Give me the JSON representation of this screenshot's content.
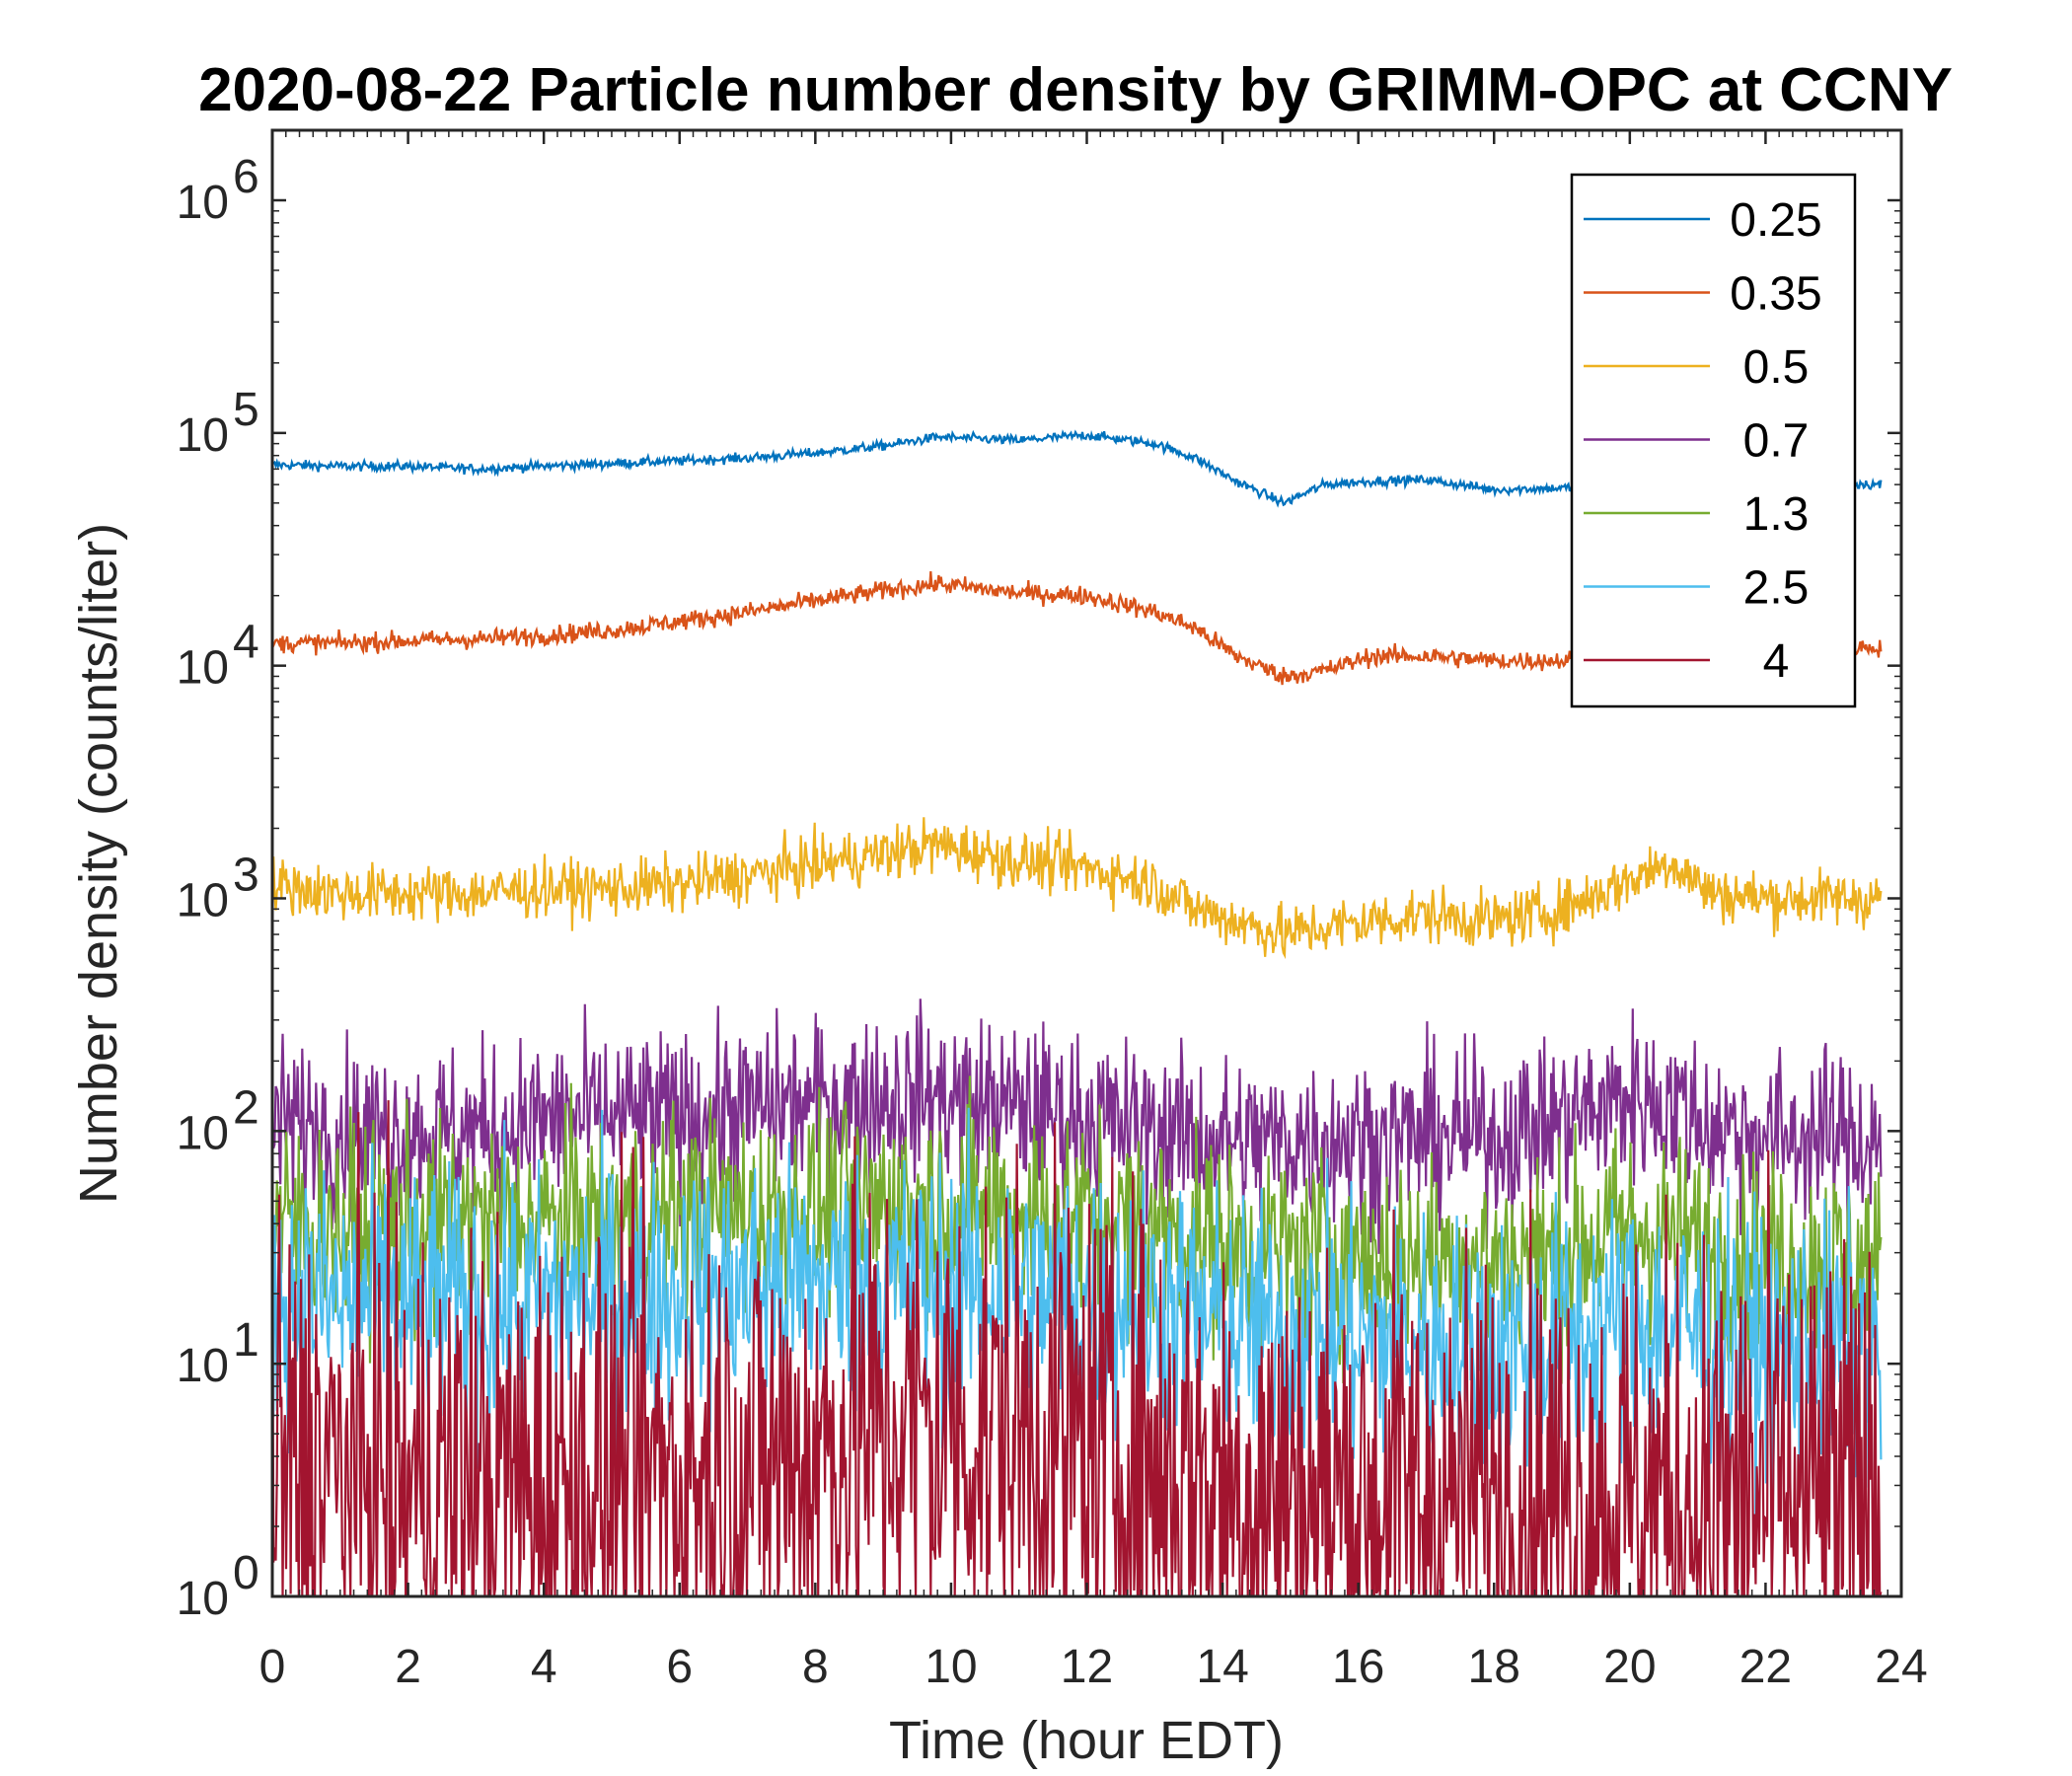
{
  "chart_data": {
    "type": "line",
    "title": "2020-08-22 Particle number density by GRIMM-OPC at CCNY",
    "xlabel": "Time (hour EDT)",
    "ylabel": "Number density (counts/liter)",
    "xlim": [
      0,
      24
    ],
    "ylim": [
      1,
      2000000
    ],
    "yscale": "log",
    "xticks": [
      "0",
      "2",
      "4",
      "6",
      "8",
      "10",
      "12",
      "14",
      "16",
      "18",
      "20",
      "22",
      "24"
    ],
    "yticks": [
      {
        "base": "10",
        "exp": "0"
      },
      {
        "base": "10",
        "exp": "1"
      },
      {
        "base": "10",
        "exp": "2"
      },
      {
        "base": "10",
        "exp": "3"
      },
      {
        "base": "10",
        "exp": "4"
      },
      {
        "base": "10",
        "exp": "5"
      },
      {
        "base": "10",
        "exp": "6"
      }
    ],
    "legend_position": "top-right",
    "x": [
      0,
      1,
      2,
      3,
      4,
      5,
      6,
      7,
      8,
      9,
      9.8,
      11,
      12,
      13,
      13.6,
      14.2,
      14.9,
      15.5,
      16.2,
      17,
      18,
      19,
      20,
      20.6,
      21.2,
      22,
      23,
      23.7
    ],
    "series": [
      {
        "name": "0.25",
        "color": "#0072BD",
        "noise": 0.01,
        "values": [
          73000,
          72000,
          72000,
          70000,
          72000,
          74000,
          76000,
          78000,
          82000,
          88000,
          96000,
          93000,
          98000,
          90000,
          78000,
          62000,
          50000,
          60000,
          62000,
          63000,
          57000,
          58000,
          60000,
          62000,
          60000,
          62000,
          61000,
          60000
        ]
      },
      {
        "name": "0.35",
        "color": "#D95319",
        "noise": 0.02,
        "values": [
          12500,
          12500,
          12800,
          13000,
          13500,
          14200,
          15500,
          17000,
          19000,
          21000,
          22500,
          20500,
          20000,
          17000,
          14500,
          11000,
          9000,
          9500,
          11000,
          11000,
          10500,
          10500,
          11000,
          12000,
          12000,
          12000,
          12000,
          12000
        ]
      },
      {
        "name": "0.5",
        "color": "#EDB120",
        "noise": 0.06,
        "values": [
          1150,
          1050,
          1050,
          1050,
          1100,
          1100,
          1150,
          1250,
          1400,
          1550,
          1700,
          1450,
          1350,
          1150,
          900,
          800,
          700,
          750,
          800,
          850,
          800,
          900,
          1200,
          1450,
          1050,
          1000,
          1000,
          1000
        ]
      },
      {
        "name": "0.7",
        "color": "#7E2F8E",
        "noise": 0.18,
        "values": [
          110,
          100,
          100,
          100,
          110,
          115,
          115,
          125,
          130,
          140,
          140,
          125,
          115,
          100,
          95,
          90,
          90,
          95,
          90,
          95,
          95,
          110,
          140,
          130,
          105,
          95,
          95,
          90
        ]
      },
      {
        "name": "1.3",
        "color": "#77AC30",
        "noise": 0.22,
        "values": [
          40,
          38,
          38,
          40,
          40,
          42,
          44,
          45,
          46,
          48,
          50,
          45,
          42,
          38,
          34,
          32,
          30,
          30,
          28,
          28,
          28,
          30,
          38,
          36,
          30,
          28,
          28,
          25
        ]
      },
      {
        "name": "2.5",
        "color": "#4DBEEE",
        "noise": 0.28,
        "values": [
          20,
          18,
          18,
          18,
          18,
          20,
          20,
          21,
          22,
          22,
          22,
          21,
          20,
          18,
          16,
          14,
          14,
          14,
          13,
          12,
          12,
          13,
          15,
          15,
          13,
          12,
          12,
          11
        ]
      },
      {
        "name": "4",
        "color": "#A2142F",
        "noise": 0.55,
        "values": [
          3.5,
          3.2,
          3,
          3,
          3,
          3.2,
          3.3,
          3.6,
          4.2,
          5.5,
          5.5,
          5,
          4.5,
          3.5,
          3.2,
          3,
          2.8,
          2.8,
          2.6,
          2.6,
          2.6,
          2.6,
          2.6,
          2.6,
          2.6,
          2.6,
          2.6,
          2.5
        ]
      }
    ]
  }
}
